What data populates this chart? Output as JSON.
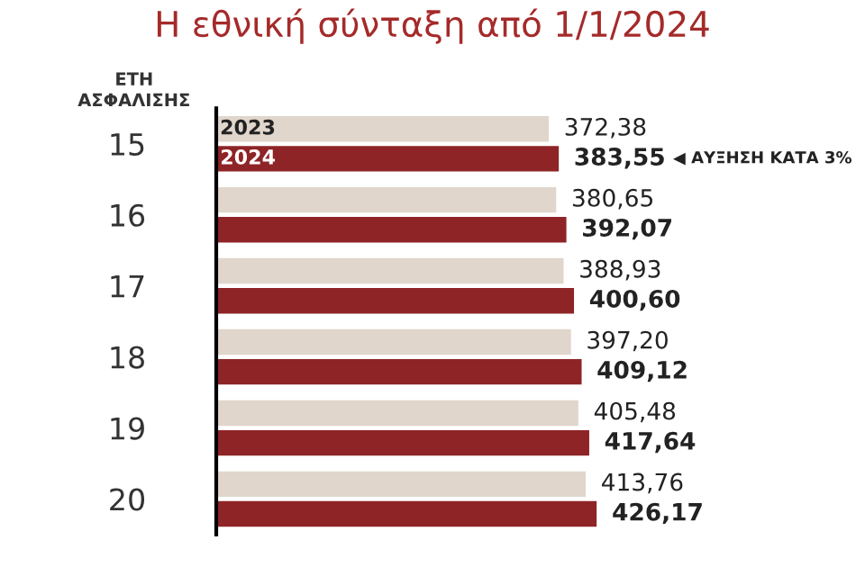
{
  "chart_data": {
    "type": "bar",
    "orientation": "horizontal",
    "title": "Η εθνική σύνταξη από 1/1/2024",
    "ylabel": "ΕΤΗ ΑΣΦΑΛΙΣΗΣ",
    "categories": [
      "15",
      "16",
      "17",
      "18",
      "19",
      "20"
    ],
    "tick_labels": "y",
    "grid": false,
    "legend": false,
    "series": [
      {
        "name": "2023",
        "color": "#e0d6cc",
        "values": [
          372.38,
          380.65,
          388.93,
          397.2,
          405.48,
          413.76
        ],
        "value_labels": [
          "372,38",
          "380,65",
          "388,93",
          "397,20",
          "405,48",
          "413,76"
        ]
      },
      {
        "name": "2024",
        "color": "#8e2426",
        "values": [
          383.55,
          392.07,
          400.6,
          409.12,
          417.64,
          426.17
        ],
        "value_labels": [
          "383,55",
          "392,07",
          "400,60",
          "409,12",
          "417,64",
          "426,17"
        ]
      }
    ],
    "annotations": [
      "◀ ΑΥΞΗΣΗ ΚΑΤΑ 3%"
    ]
  }
}
